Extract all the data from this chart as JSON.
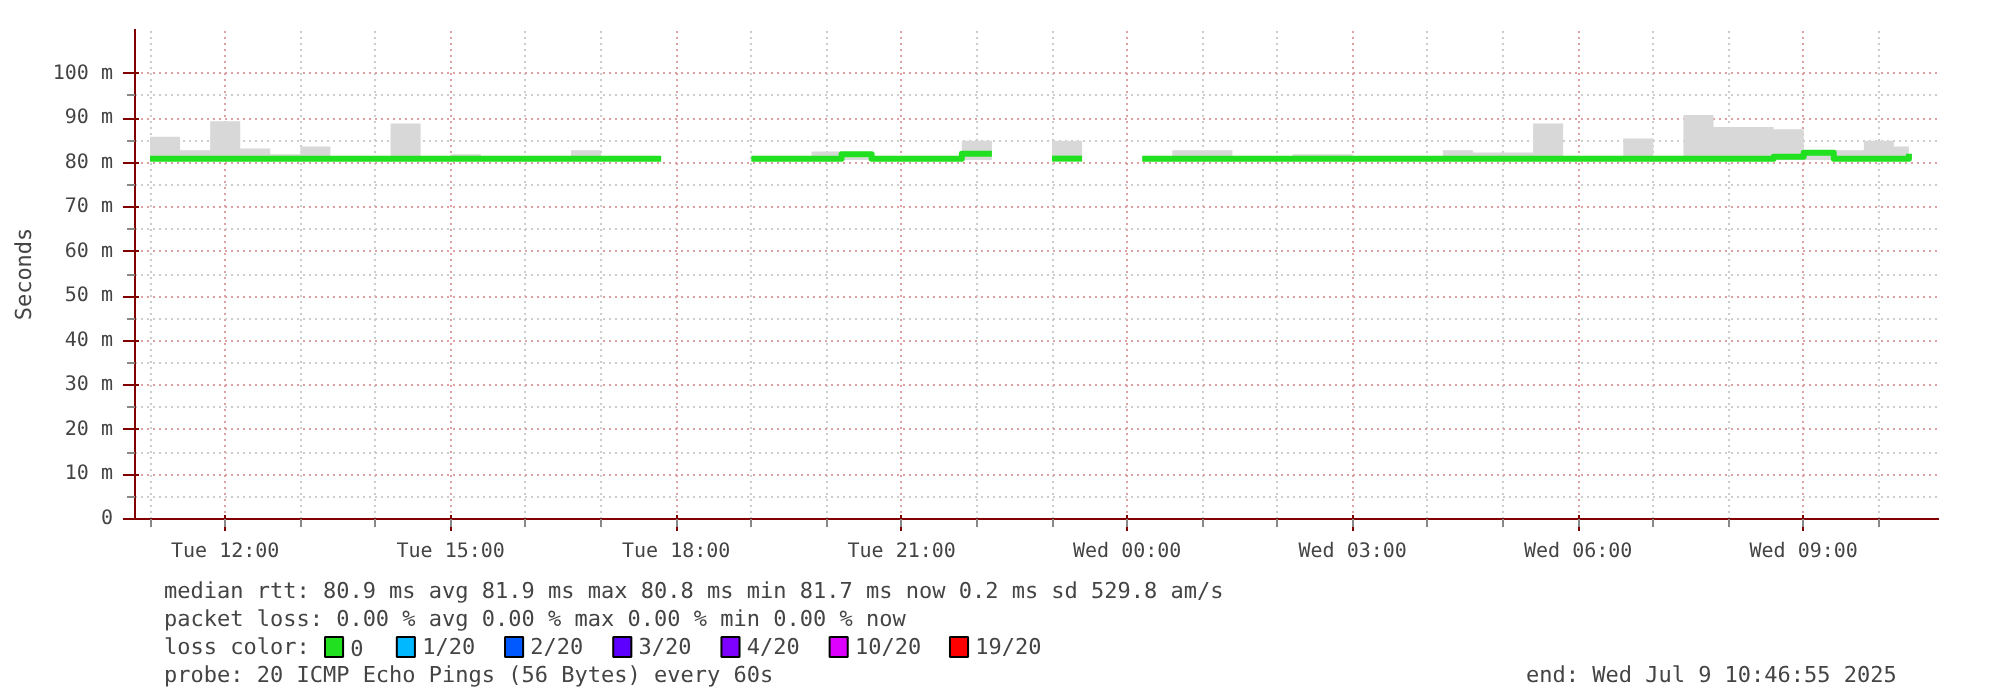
{
  "chart_data": {
    "type": "step",
    "ylabel": "Seconds",
    "x": [
      "2025-07-08T11:00",
      "2025-07-08T11:24",
      "2025-07-08T11:48",
      "2025-07-08T12:12",
      "2025-07-08T12:36",
      "2025-07-08T13:00",
      "2025-07-08T13:24",
      "2025-07-08T13:48",
      "2025-07-08T14:12",
      "2025-07-08T14:36",
      "2025-07-08T15:00",
      "2025-07-08T15:24",
      "2025-07-08T15:48",
      "2025-07-08T16:12",
      "2025-07-08T16:36",
      "2025-07-08T17:00",
      "2025-07-08T17:24",
      "2025-07-08T17:48",
      "2025-07-08T18:12",
      "2025-07-08T18:36",
      "2025-07-08T19:00",
      "2025-07-08T19:24",
      "2025-07-08T19:48",
      "2025-07-08T20:12",
      "2025-07-08T20:36",
      "2025-07-08T21:00",
      "2025-07-08T21:24",
      "2025-07-08T21:48",
      "2025-07-08T22:12",
      "2025-07-08T22:36",
      "2025-07-08T23:00",
      "2025-07-08T23:24",
      "2025-07-08T23:48",
      "2025-07-09T00:12",
      "2025-07-09T00:36",
      "2025-07-09T01:00",
      "2025-07-09T01:24",
      "2025-07-09T01:48",
      "2025-07-09T02:12",
      "2025-07-09T02:36",
      "2025-07-09T03:00",
      "2025-07-09T03:24",
      "2025-07-09T03:48",
      "2025-07-09T04:12",
      "2025-07-09T04:36",
      "2025-07-09T05:00",
      "2025-07-09T05:24",
      "2025-07-09T05:48",
      "2025-07-09T06:12",
      "2025-07-09T06:36",
      "2025-07-09T07:00",
      "2025-07-09T07:24",
      "2025-07-09T07:48",
      "2025-07-09T08:12",
      "2025-07-09T08:36",
      "2025-07-09T09:00",
      "2025-07-09T09:24",
      "2025-07-09T09:48",
      "2025-07-09T10:12",
      "2025-07-09T10:24"
    ],
    "series": [
      {
        "name": "0",
        "color": "#20e020",
        "values": [
          80.9,
          80.9,
          80.9,
          80.9,
          80.9,
          80.9,
          80.9,
          80.9,
          80.9,
          80.9,
          80.9,
          80.9,
          80.9,
          80.9,
          80.9,
          80.9,
          80.9,
          null,
          null,
          null,
          80.9,
          80.9,
          80.9,
          81.9,
          80.9,
          80.9,
          80.9,
          82.0,
          null,
          null,
          80.9,
          null,
          null,
          80.9,
          80.9,
          80.9,
          80.9,
          80.9,
          80.9,
          80.9,
          80.9,
          80.9,
          80.9,
          80.9,
          80.9,
          80.9,
          80.9,
          80.9,
          80.9,
          80.9,
          80.9,
          80.9,
          80.9,
          80.9,
          81.3,
          82.2,
          80.9,
          80.9,
          80.9,
          82.0
        ],
        "lower": [
          80.6,
          80.6,
          80.6,
          80.6,
          80.6,
          80.6,
          80.6,
          80.6,
          80.6,
          80.6,
          80.6,
          80.6,
          80.6,
          80.6,
          80.6,
          80.6,
          80.6,
          null,
          null,
          null,
          80.6,
          80.6,
          80.6,
          80.6,
          80.6,
          80.6,
          80.6,
          80.6,
          null,
          null,
          80.6,
          null,
          null,
          80.6,
          80.6,
          80.6,
          80.6,
          80.6,
          80.6,
          80.6,
          80.6,
          80.6,
          80.6,
          80.6,
          80.6,
          80.6,
          80.6,
          80.6,
          80.6,
          80.6,
          80.6,
          80.6,
          80.6,
          80.6,
          80.6,
          80.6,
          80.6,
          80.6,
          80.6,
          80.6
        ],
        "upper": [
          85.8,
          82.8,
          89.3,
          83.2,
          81.9,
          83.6,
          81.2,
          81.2,
          88.8,
          81.2,
          81.9,
          81.2,
          81.2,
          81.2,
          82.8,
          81.2,
          81.2,
          null,
          null,
          null,
          81.2,
          81.2,
          82.5,
          81.2,
          81.2,
          81.2,
          81.2,
          84.9,
          null,
          null,
          84.9,
          null,
          null,
          81.2,
          82.8,
          82.8,
          81.2,
          81.2,
          81.9,
          81.9,
          81.2,
          81.2,
          81.2,
          82.8,
          82.3,
          82.3,
          88.8,
          81.2,
          81.2,
          85.4,
          81.2,
          90.7,
          88.0,
          88.0,
          87.5,
          82.2,
          82.8,
          84.9,
          83.6,
          99.0
        ]
      },
      {
        "name": "1/20",
        "color": "#00b8ff",
        "values": [
          null,
          null,
          null,
          null,
          null,
          null,
          null,
          null,
          null,
          null,
          null,
          null,
          null,
          null,
          null,
          null,
          null,
          null,
          null,
          null,
          null,
          null,
          null,
          null,
          null,
          null,
          null,
          null,
          null,
          null,
          null,
          null,
          null,
          null,
          null,
          null,
          null,
          null,
          null,
          null,
          null,
          null,
          null,
          null,
          null,
          null,
          null,
          null,
          null,
          null,
          null,
          null,
          null,
          null,
          null,
          null,
          null,
          null,
          null,
          null
        ]
      },
      {
        "name": "2/20",
        "color": "#0059ff",
        "values": [
          null,
          null,
          null,
          null,
          null,
          null,
          null,
          null,
          null,
          null,
          null,
          null,
          null,
          null,
          null,
          null,
          null,
          null,
          null,
          null,
          null,
          null,
          null,
          null,
          null,
          null,
          null,
          null,
          null,
          null,
          null,
          null,
          null,
          null,
          null,
          null,
          null,
          null,
          null,
          null,
          null,
          null,
          null,
          null,
          null,
          null,
          null,
          null,
          null,
          null,
          null,
          null,
          null,
          null,
          null,
          null,
          null,
          null,
          null,
          null
        ]
      },
      {
        "name": "3/20",
        "color": "#5e00ff",
        "values": [
          null,
          null,
          null,
          null,
          null,
          null,
          null,
          null,
          null,
          null,
          null,
          null,
          null,
          null,
          null,
          null,
          null,
          null,
          null,
          null,
          null,
          null,
          null,
          null,
          null,
          null,
          null,
          null,
          null,
          null,
          null,
          null,
          null,
          null,
          null,
          null,
          null,
          null,
          null,
          null,
          null,
          null,
          null,
          null,
          null,
          null,
          null,
          null,
          null,
          null,
          null,
          null,
          null,
          null,
          null,
          null,
          null,
          null,
          null,
          null
        ]
      },
      {
        "name": "4/20",
        "color": "#7e00ff",
        "values": [
          null,
          null,
          null,
          null,
          null,
          null,
          null,
          null,
          null,
          null,
          null,
          null,
          null,
          null,
          null,
          null,
          null,
          null,
          null,
          null,
          null,
          null,
          null,
          null,
          null,
          null,
          null,
          null,
          null,
          null,
          null,
          null,
          null,
          null,
          null,
          null,
          null,
          null,
          null,
          null,
          null,
          null,
          null,
          null,
          null,
          null,
          null,
          null,
          null,
          null,
          null,
          null,
          null,
          null,
          null,
          null,
          null,
          null,
          null,
          null
        ]
      },
      {
        "name": "10/20",
        "color": "#dd00ff",
        "values": [
          null,
          null,
          null,
          null,
          null,
          null,
          null,
          null,
          null,
          null,
          null,
          null,
          null,
          null,
          null,
          null,
          null,
          null,
          null,
          null,
          null,
          null,
          null,
          null,
          null,
          null,
          null,
          null,
          null,
          null,
          null,
          null,
          null,
          null,
          null,
          null,
          null,
          null,
          null,
          null,
          null,
          null,
          null,
          null,
          null,
          null,
          null,
          null,
          null,
          null,
          null,
          null,
          null,
          null,
          null,
          null,
          null,
          null,
          null,
          null
        ]
      },
      {
        "name": "19/20",
        "color": "#ff0000",
        "values": [
          null,
          null,
          null,
          null,
          null,
          null,
          null,
          null,
          null,
          null,
          null,
          null,
          null,
          null,
          null,
          null,
          null,
          null,
          null,
          null,
          null,
          null,
          null,
          null,
          null,
          null,
          null,
          null,
          null,
          null,
          null,
          null,
          null,
          null,
          null,
          null,
          null,
          null,
          null,
          null,
          null,
          null,
          null,
          null,
          null,
          null,
          null,
          null,
          null,
          null,
          null,
          null,
          null,
          null,
          null,
          null,
          null,
          null,
          null,
          null
        ]
      }
    ],
    "legend_title": "loss color:",
    "legend": "bottom",
    "xlim": [
      "2025-07-08T10:48",
      "2025-07-09T10:48"
    ],
    "xticks": [
      {
        "value": "2025-07-08T12:00",
        "label": "Tue 12:00"
      },
      {
        "value": "2025-07-08T15:00",
        "label": "Tue 15:00"
      },
      {
        "value": "2025-07-08T18:00",
        "label": "Tue 18:00"
      },
      {
        "value": "2025-07-08T21:00",
        "label": "Tue 21:00"
      },
      {
        "value": "2025-07-09T00:00",
        "label": "Wed 00:00"
      },
      {
        "value": "2025-07-09T03:00",
        "label": "Wed 03:00"
      },
      {
        "value": "2025-07-09T06:00",
        "label": "Wed 06:00"
      },
      {
        "value": "2025-07-09T09:00",
        "label": "Wed 09:00"
      }
    ],
    "ylim": [
      0,
      110
    ],
    "yticks": [
      0,
      {
        "value": 10,
        "label": "10 m"
      },
      {
        "value": 20,
        "label": "20 m"
      },
      {
        "value": 30,
        "label": "30 m"
      },
      {
        "value": 40,
        "label": "40 m"
      },
      {
        "value": 50,
        "label": "50 m"
      },
      {
        "value": 60,
        "label": "60 m"
      },
      {
        "value": 70,
        "label": "70 m"
      },
      {
        "value": 80,
        "label": "80 m"
      },
      {
        "value": 90,
        "label": "90 m"
      },
      {
        "value": 100,
        "label": "100 m"
      }
    ],
    "grid": true,
    "line_style": "solid",
    "marker": "none",
    "annotations": [
      "median rtt:  80.9 ms avg  81.9 ms max  80.8 ms min  81.7 ms now  0.2 ms sd  529.8   am/s",
      "packet loss: 0.00 % avg  0.00 % max  0.00 % min  0.00 % now",
      "probe:       20 ICMP Echo Pings (56 Bytes) every 60s",
      "end: Wed Jul  9 10:46:55 2025"
    ]
  }
}
